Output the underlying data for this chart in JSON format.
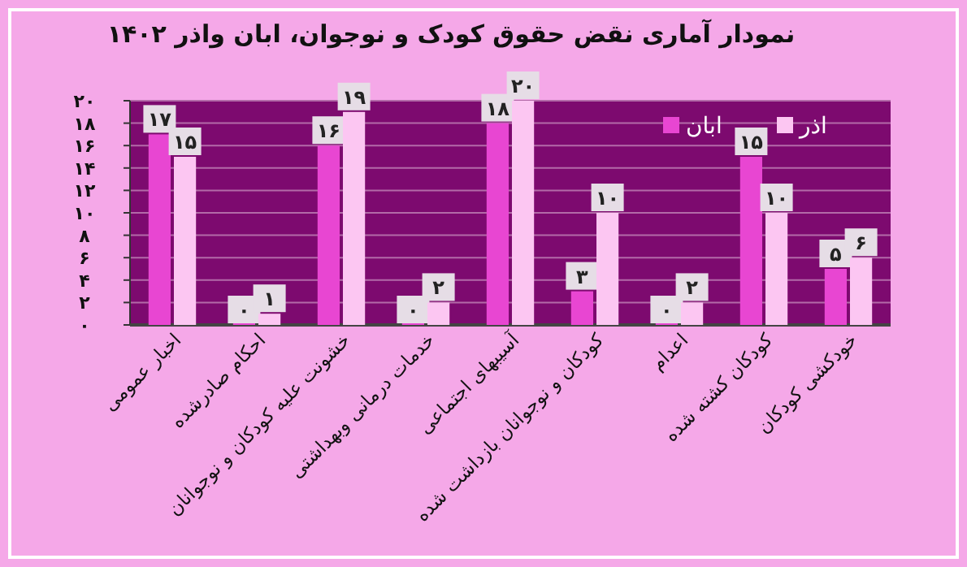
{
  "chart_data": {
    "type": "bar",
    "title": "نمودار آماری نقض حقوق کودک و نوجوان، ابان واذر ۱۴۰۲",
    "categories": [
      "اخبار عمومی",
      "احکام صادرشده",
      "خشونت علیه کودکان و نوجوانان",
      "خدمات درمانی وبهداشتی",
      "آسیبهای اجتماعی",
      "کودکان و نوجوانان بازداشت شده",
      "اعدام",
      "کودکان  کشته شده",
      "خودکشی  کودکان"
    ],
    "series": [
      {
        "name": "ابان",
        "color": "#e846d2",
        "values": [
          17,
          0,
          16,
          0,
          18,
          3,
          0,
          15,
          5
        ],
        "value_labels": [
          "۱۷",
          "۰",
          "۱۶",
          "۰",
          "۱۸",
          "۳",
          "۰",
          "۱۵",
          "۵"
        ]
      },
      {
        "name": "اذر",
        "color": "#fcc6f2",
        "values": [
          15,
          1,
          19,
          2,
          20,
          10,
          2,
          10,
          6
        ],
        "value_labels": [
          "۱۵",
          "۱",
          "۱۹",
          "۲",
          "۲۰",
          "۱۰",
          "۲",
          "۱۰",
          "۶"
        ]
      }
    ],
    "ylim": [
      0,
      20
    ],
    "yticks": [
      {
        "value": 0,
        "label": "۰"
      },
      {
        "value": 2,
        "label": "۲"
      },
      {
        "value": 4,
        "label": "۴"
      },
      {
        "value": 6,
        "label": "۶"
      },
      {
        "value": 8,
        "label": "۸"
      },
      {
        "value": 10,
        "label": "۱۰"
      },
      {
        "value": 12,
        "label": "۱۲"
      },
      {
        "value": 14,
        "label": "۱۴"
      },
      {
        "value": 16,
        "label": "۱۶"
      },
      {
        "value": 18,
        "label": "۱۸"
      },
      {
        "value": 20,
        "label": "۲۰"
      }
    ],
    "grid": "y",
    "legend": "top right"
  }
}
